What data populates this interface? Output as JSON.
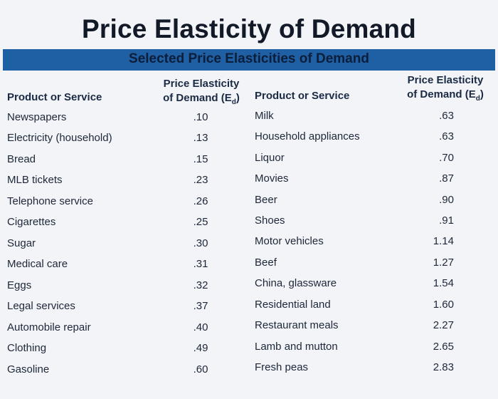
{
  "title": "Price Elasticity of Demand",
  "subtitle": "Selected Price Elasticities of Demand",
  "headers": {
    "product": "Product or Service",
    "elasticity_line1": "Price Elasticity",
    "elasticity_line2": "of Demand (E",
    "elasticity_sub": "d",
    "elasticity_close": ")"
  },
  "left_rows": [
    {
      "product": "Newspapers",
      "value": ".10"
    },
    {
      "product": "Electricity (household)",
      "value": ".13"
    },
    {
      "product": "Bread",
      "value": ".15"
    },
    {
      "product": "MLB tickets",
      "value": ".23"
    },
    {
      "product": "Telephone service",
      "value": ".26"
    },
    {
      "product": "Cigarettes",
      "value": ".25"
    },
    {
      "product": "Sugar",
      "value": ".30"
    },
    {
      "product": "Medical care",
      "value": ".31"
    },
    {
      "product": "Eggs",
      "value": ".32"
    },
    {
      "product": "Legal services",
      "value": ".37"
    },
    {
      "product": "Automobile repair",
      "value": ".40"
    },
    {
      "product": "Clothing",
      "value": ".49"
    },
    {
      "product": "Gasoline",
      "value": ".60"
    }
  ],
  "right_rows": [
    {
      "product": "Milk",
      "value": ".63"
    },
    {
      "product": "Household appliances",
      "value": ".63"
    },
    {
      "product": "Liquor",
      "value": ".70"
    },
    {
      "product": "Movies",
      "value": ".87"
    },
    {
      "product": "Beer",
      "value": ".90"
    },
    {
      "product": "Shoes",
      "value": ".91"
    },
    {
      "product": "Motor vehicles",
      "value": "1.14"
    },
    {
      "product": "Beef",
      "value": "1.27"
    },
    {
      "product": "China, glassware",
      "value": "1.54"
    },
    {
      "product": "Residential land",
      "value": "1.60"
    },
    {
      "product": "Restaurant meals",
      "value": "2.27"
    },
    {
      "product": "Lamb and mutton",
      "value": "2.65"
    },
    {
      "product": "Fresh peas",
      "value": "2.83"
    }
  ]
}
